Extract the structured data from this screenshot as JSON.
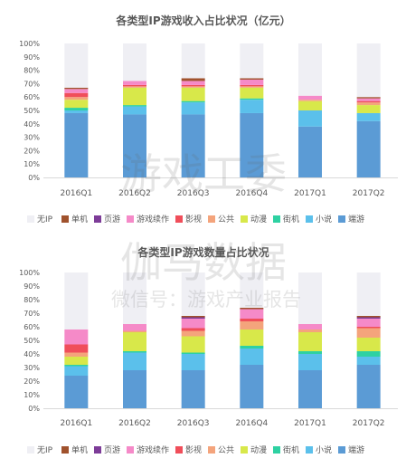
{
  "chart_data": [
    {
      "type": "bar",
      "stacked": true,
      "title": "各类型IP游戏收入占比状况（亿元）",
      "categories": [
        "2016Q1",
        "2016Q2",
        "2016Q3",
        "2016Q4",
        "2017Q1",
        "2017Q2"
      ],
      "y_ticks": [
        "0%",
        "10%",
        "20%",
        "30%",
        "40%",
        "50%",
        "60%",
        "70%",
        "80%",
        "90%",
        "100%"
      ],
      "ylim": [
        0,
        100
      ],
      "legend_position": "bottom",
      "series": [
        {
          "name": "端游",
          "color": "#5b9bd5",
          "values": [
            48,
            47,
            47,
            48,
            38,
            42
          ]
        },
        {
          "name": "小说",
          "color": "#5bc0eb",
          "values": [
            2,
            6,
            9,
            10,
            12,
            6
          ]
        },
        {
          "name": "街机",
          "color": "#2ed1a2",
          "values": [
            2,
            1,
            1,
            1,
            0,
            0
          ]
        },
        {
          "name": "动漫",
          "color": "#d8e84a",
          "values": [
            6,
            13,
            10,
            8,
            7,
            6
          ]
        },
        {
          "name": "公共",
          "color": "#f4a47c",
          "values": [
            2,
            1,
            1,
            1,
            1,
            2
          ]
        },
        {
          "name": "影视",
          "color": "#f04e5a",
          "values": [
            3,
            1,
            1,
            1,
            0,
            1
          ]
        },
        {
          "name": "游戏续作",
          "color": "#f58ac8",
          "values": [
            3,
            3,
            3,
            4,
            3,
            2
          ]
        },
        {
          "name": "页游",
          "color": "#7d3c98",
          "values": [
            0,
            0,
            0,
            0,
            0,
            0
          ]
        },
        {
          "name": "单机",
          "color": "#a0522d",
          "values": [
            1,
            0,
            2,
            1,
            0,
            1
          ]
        },
        {
          "name": "无IP",
          "color": "#efeff4",
          "values": [
            33,
            28,
            26,
            26,
            39,
            40
          ]
        }
      ]
    },
    {
      "type": "bar",
      "stacked": true,
      "title": "各类型IP游戏数量占比状况",
      "categories": [
        "2016Q1",
        "2016Q2",
        "2016Q3",
        "2016Q4",
        "2017Q1",
        "2017Q2"
      ],
      "y_ticks": [
        "0%",
        "10%",
        "20%",
        "30%",
        "40%",
        "50%",
        "60%",
        "70%",
        "80%",
        "90%",
        "100%"
      ],
      "ylim": [
        0,
        100
      ],
      "legend_position": "bottom",
      "series": [
        {
          "name": "端游",
          "color": "#5b9bd5",
          "values": [
            24,
            28,
            28,
            32,
            28,
            32
          ]
        },
        {
          "name": "小说",
          "color": "#5bc0eb",
          "values": [
            7,
            13,
            12,
            12,
            12,
            6
          ]
        },
        {
          "name": "街机",
          "color": "#2ed1a2",
          "values": [
            1,
            1,
            1,
            2,
            2,
            4
          ]
        },
        {
          "name": "动漫",
          "color": "#d8e84a",
          "values": [
            6,
            14,
            12,
            12,
            14,
            10
          ]
        },
        {
          "name": "公共",
          "color": "#f4a47c",
          "values": [
            3,
            1,
            4,
            6,
            2,
            7
          ]
        },
        {
          "name": "影视",
          "color": "#f04e5a",
          "values": [
            6,
            0,
            2,
            2,
            0,
            1
          ]
        },
        {
          "name": "游戏续作",
          "color": "#f58ac8",
          "values": [
            11,
            5,
            7,
            7,
            4,
            6
          ]
        },
        {
          "name": "页游",
          "color": "#7d3c98",
          "values": [
            0,
            0,
            1,
            0,
            0,
            1
          ]
        },
        {
          "name": "单机",
          "color": "#a0522d",
          "values": [
            0,
            0,
            1,
            1,
            0,
            1
          ]
        },
        {
          "name": "无IP",
          "color": "#efeff4",
          "values": [
            42,
            38,
            32,
            26,
            38,
            32
          ]
        }
      ]
    }
  ],
  "legend_order": [
    "无IP",
    "单机",
    "页游",
    "游戏续作",
    "影视",
    "公共",
    "动漫",
    "街机",
    "小说",
    "端游"
  ],
  "watermark": {
    "lines": [
      "游戏工委",
      "伽马数据",
      "微信号：游戏产业报告"
    ]
  }
}
